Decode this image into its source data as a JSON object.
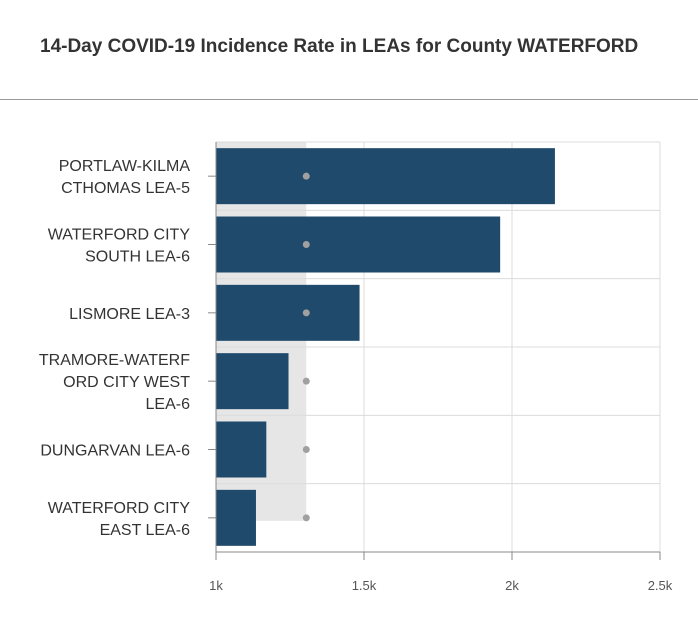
{
  "title": "14-Day COVID-19 Incidence Rate in LEAs for County WATERFORD",
  "colors": {
    "bar": "#1f4a6b",
    "marker": "#a0a0a0",
    "band": "#e6e6e6",
    "grid": "#dcdcdc",
    "axis": "#888888",
    "text": "#333333"
  },
  "chart_data": {
    "type": "bar",
    "orientation": "horizontal",
    "categories": [
      [
        "PORTLAW-KILMA",
        "CTHOMAS LEA-5"
      ],
      [
        "WATERFORD CITY",
        "SOUTH LEA-6"
      ],
      [
        "LISMORE LEA-3"
      ],
      [
        "TRAMORE-WATERF",
        "ORD CITY WEST",
        "LEA-6"
      ],
      [
        "DUNGARVAN LEA-6"
      ],
      [
        "WATERFORD CITY",
        "EAST LEA-6"
      ]
    ],
    "values": [
      2145,
      1960,
      1485,
      1245,
      1170,
      1135
    ],
    "reference_marker": 1305,
    "xlim": [
      1000,
      2500
    ],
    "ticks": [
      1000,
      1500,
      2000,
      2500
    ],
    "tick_labels": [
      "1k",
      "1.5k",
      "2k",
      "2.5k"
    ],
    "grid": true
  }
}
